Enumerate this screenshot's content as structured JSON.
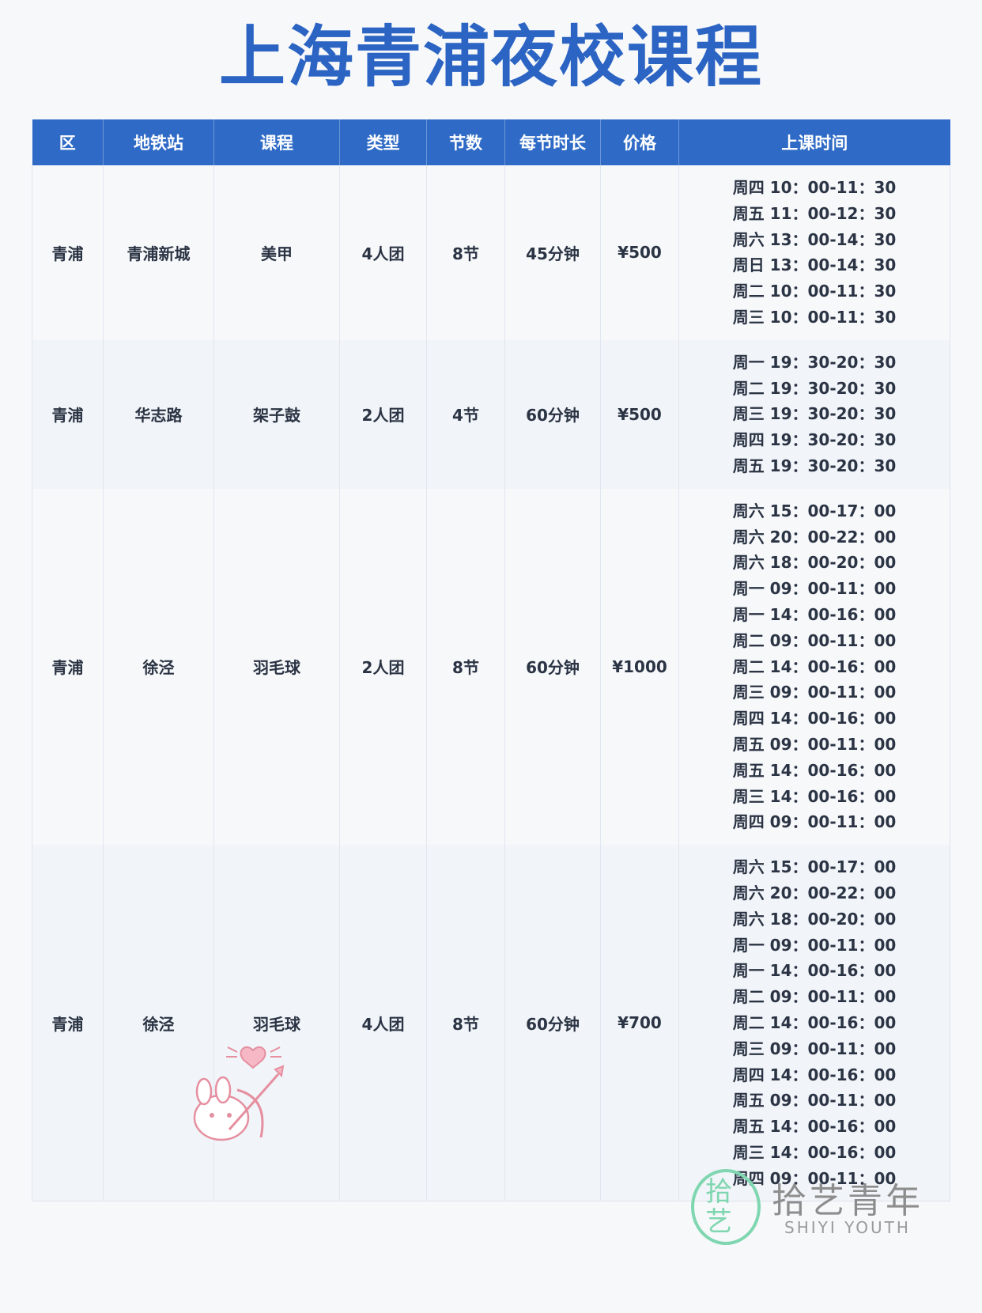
{
  "title": "上海青浦夜校课程",
  "table": {
    "headers": [
      "区",
      "地铁站",
      "课程",
      "类型",
      "节数",
      "每节时长",
      "价格",
      "上课时间"
    ],
    "rows": [
      {
        "district": "青浦",
        "station": "青浦新城",
        "course": "美甲",
        "type": "4人团",
        "sessions": "8节",
        "duration": "45分钟",
        "price": "¥500",
        "times": [
          "周四 10：00-11：30",
          "周五 11：00-12：30",
          "周六 13：00-14：30",
          "周日 13：00-14：30",
          "周二 10：00-11：30",
          "周三 10：00-11：30"
        ]
      },
      {
        "district": "青浦",
        "station": "华志路",
        "course": "架子鼓",
        "type": "2人团",
        "sessions": "4节",
        "duration": "60分钟",
        "price": "¥500",
        "times": [
          "周一 19：30-20：30",
          "周二 19：30-20：30",
          "周三 19：30-20：30",
          "周四 19：30-20：30",
          "周五 19：30-20：30"
        ]
      },
      {
        "district": "青浦",
        "station": "徐泾",
        "course": "羽毛球",
        "type": "2人团",
        "sessions": "8节",
        "duration": "60分钟",
        "price": "¥1000",
        "times": [
          "周六 15：00-17：00",
          "周六 20：00-22：00",
          "周六 18：00-20：00",
          "周一 09：00-11：00",
          "周一 14：00-16：00",
          "周二 09：00-11：00",
          "周二 14：00-16：00",
          "周三 09：00-11：00",
          "周四 14：00-16：00",
          "周五 09：00-11：00",
          "周五 14：00-16：00",
          "周三 14：00-16：00",
          "周四 09：00-11：00"
        ]
      },
      {
        "district": "青浦",
        "station": "徐泾",
        "course": "羽毛球",
        "type": "4人团",
        "sessions": "8节",
        "duration": "60分钟",
        "price": "¥700",
        "times": [
          "周六 15：00-17：00",
          "周六 20：00-22：00",
          "周六 18：00-20：00",
          "周一 09：00-11：00",
          "周一 14：00-16：00",
          "周二 09：00-11：00",
          "周二 14：00-16：00",
          "周三 09：00-11：00",
          "周四 14：00-16：00",
          "周五 09：00-11：00",
          "周五 14：00-16：00",
          "周三 14：00-16：00",
          "周四 09：00-11：00"
        ]
      }
    ]
  },
  "logo": {
    "cn": "拾艺青年",
    "en": "SHIYI YOUTH",
    "mark": "拾艺"
  },
  "colors": {
    "title": "#2b64c3",
    "header_bg": "#2f6bc6",
    "logo_green": "#7fd6b0"
  }
}
